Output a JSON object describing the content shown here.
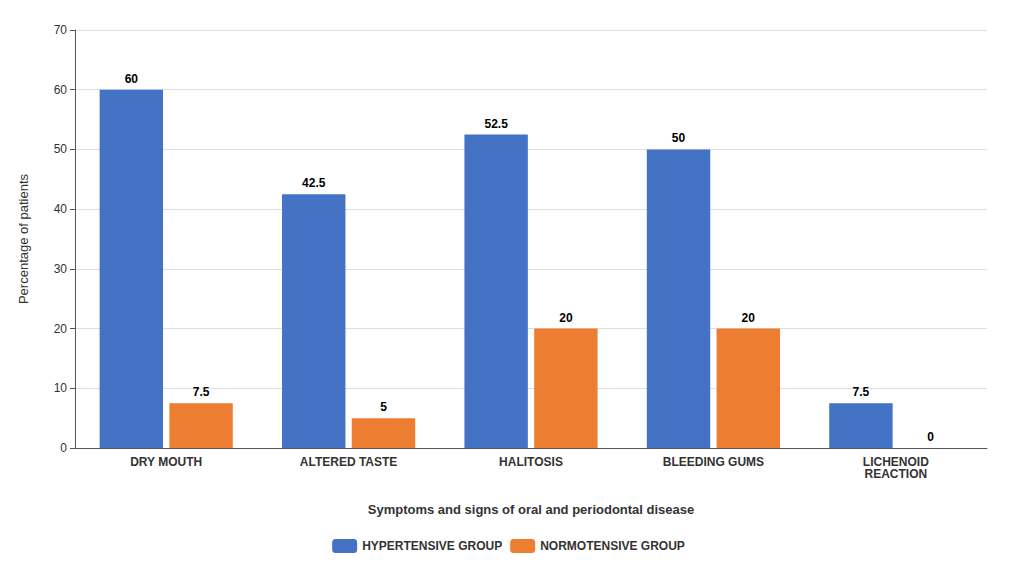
{
  "chart_data": {
    "type": "bar",
    "xlabel": "Symptoms and signs of oral and periodontal disease",
    "ylabel": "Percentage of patients",
    "categories": [
      "DRY MOUTH",
      "ALTERED TASTE",
      "HALITOSIS",
      "BLEEDING GUMS",
      "LICHENOID\nREACTION"
    ],
    "series": [
      {
        "name": "HYPERTENSIVE GROUP",
        "color": "#4472C4",
        "values": [
          60,
          42.5,
          52.5,
          50,
          7.5
        ]
      },
      {
        "name": "NORMOTENSIVE GROUP",
        "color": "#ED7D31",
        "values": [
          7.5,
          5,
          20,
          20,
          0
        ]
      }
    ],
    "ylim": [
      0,
      70
    ],
    "yticks": [
      0,
      10,
      20,
      30,
      40,
      50,
      60,
      70
    ],
    "grid": true,
    "legend": "bottom",
    "data_labels": true
  }
}
